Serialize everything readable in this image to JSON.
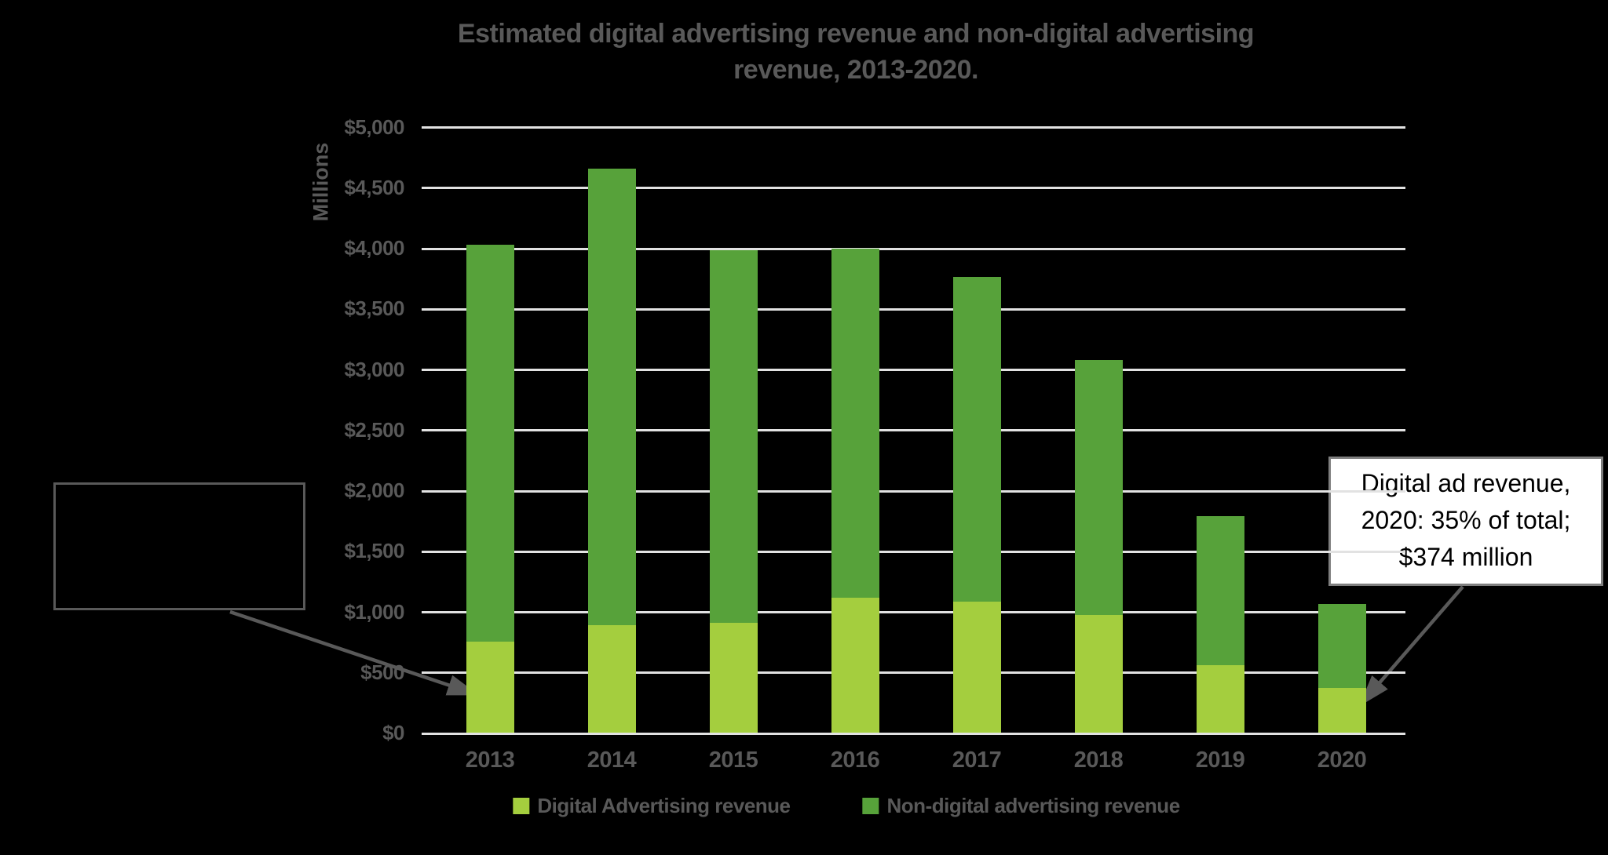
{
  "title": "Estimated digital advertising revenue and non-digital advertising revenue, 2013-2020.",
  "chart_data": {
    "type": "bar",
    "stacked": true,
    "title": "Estimated digital advertising revenue and non-digital advertising revenue, 2013-2020.",
    "categories": [
      "2013",
      "2014",
      "2015",
      "2016",
      "2017",
      "2018",
      "2019",
      "2020"
    ],
    "series": [
      {
        "name": "Digital Advertising revenue",
        "color": "#a4ce3e",
        "values": [
          760,
          890,
          915,
          1120,
          1090,
          975,
          560,
          374
        ]
      },
      {
        "name": "Non-digital advertising revenue",
        "color": "#57a23a",
        "values": [
          3270,
          3770,
          3075,
          2880,
          2680,
          2105,
          1230,
          695
        ]
      }
    ],
    "ylabel": "Millions",
    "ylim": [
      0,
      5000
    ],
    "ytick_step": 500,
    "ytick_labels": [
      "$0",
      "$500",
      "$1,000",
      "$1,500",
      "$2,000",
      "$2,500",
      "$3,000",
      "$3,500",
      "$4,000",
      "$4,500",
      "$5,000"
    ],
    "grid": true,
    "legend_position": "bottom"
  },
  "callouts": {
    "right": {
      "text": "Digital ad revenue,\n2020: 35% of total;\n$374 million"
    },
    "left": {
      "text": ""
    }
  },
  "colors": {
    "background": "#000000",
    "text_gray": "#595959",
    "gridline": "#e2e2e2",
    "digital_green": "#a4ce3e",
    "non_digital_green": "#57a23a",
    "callout_bg": "#ffffff",
    "callout_border": "#7f7f7f",
    "arrow": "#595959"
  }
}
